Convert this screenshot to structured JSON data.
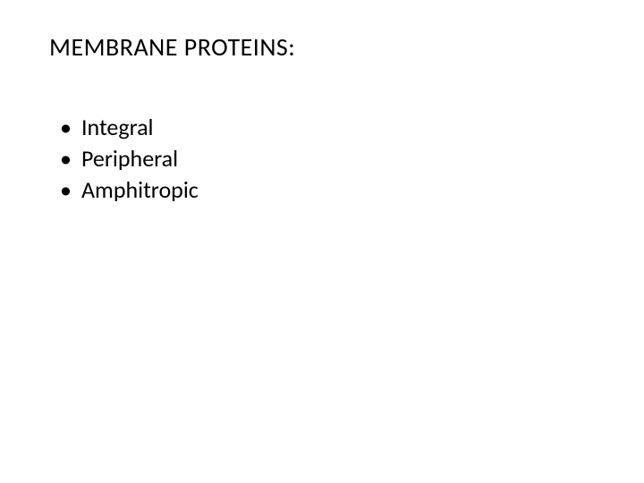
{
  "slide": {
    "title": "MEMBRANE PROTEINS:",
    "bullets": [
      "Integral",
      "Peripheral",
      " Amphitropic"
    ],
    "colors": {
      "background": "#ffffff",
      "text": "#000000"
    },
    "typography": {
      "title_fontsize": 28,
      "bullet_fontsize": 26,
      "font_family": "Calibri"
    }
  }
}
